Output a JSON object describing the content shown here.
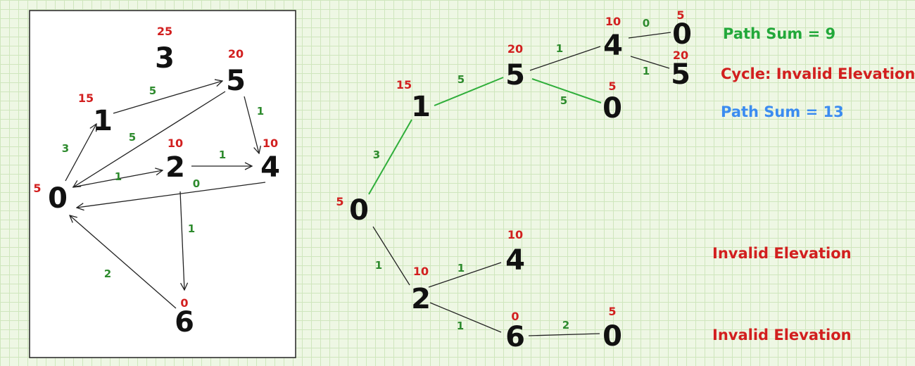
{
  "graph": {
    "nodes": [
      {
        "id": "0",
        "elevation": "5"
      },
      {
        "id": "1",
        "elevation": "15"
      },
      {
        "id": "2",
        "elevation": "10"
      },
      {
        "id": "3",
        "elevation": "25"
      },
      {
        "id": "4",
        "elevation": "10"
      },
      {
        "id": "5",
        "elevation": "20"
      },
      {
        "id": "6",
        "elevation": "0"
      }
    ],
    "edges": [
      {
        "from": "0",
        "to": "1",
        "weight": "3"
      },
      {
        "from": "1",
        "to": "5",
        "weight": "5"
      },
      {
        "from": "5",
        "to": "0",
        "weight": "5"
      },
      {
        "from": "5",
        "to": "4",
        "weight": "1"
      },
      {
        "from": "0",
        "to": "2",
        "weight": "1"
      },
      {
        "from": "2",
        "to": "4",
        "weight": "1"
      },
      {
        "from": "4",
        "to": "0",
        "weight": "0"
      },
      {
        "from": "2",
        "to": "6",
        "weight": "1"
      },
      {
        "from": "6",
        "to": "0",
        "weight": "2"
      }
    ]
  },
  "tree": {
    "nodes": [
      {
        "id": "t0",
        "label": "0",
        "elevation": "5"
      },
      {
        "id": "t1",
        "label": "1",
        "elevation": "15"
      },
      {
        "id": "t5",
        "label": "5",
        "elevation": "20"
      },
      {
        "id": "t4a",
        "label": "4",
        "elevation": "10"
      },
      {
        "id": "t0a",
        "label": "0",
        "elevation": "5"
      },
      {
        "id": "t5b",
        "label": "5",
        "elevation": "20"
      },
      {
        "id": "t0b",
        "label": "0",
        "elevation": "5"
      },
      {
        "id": "t2",
        "label": "2",
        "elevation": "10"
      },
      {
        "id": "t4c",
        "label": "4",
        "elevation": "10"
      },
      {
        "id": "t6",
        "label": "6",
        "elevation": "0"
      },
      {
        "id": "t0c",
        "label": "0",
        "elevation": "5"
      }
    ],
    "edges": [
      {
        "from": "t0",
        "to": "t1",
        "weight": "3",
        "highlight": true
      },
      {
        "from": "t1",
        "to": "t5",
        "weight": "5",
        "highlight": true
      },
      {
        "from": "t5",
        "to": "t4a",
        "weight": "1",
        "highlight": false
      },
      {
        "from": "t4a",
        "to": "t0a",
        "weight": "0",
        "highlight": false
      },
      {
        "from": "t4a",
        "to": "t5b",
        "weight": "1",
        "highlight": false
      },
      {
        "from": "t5",
        "to": "t0b",
        "weight": "5",
        "highlight": true
      },
      {
        "from": "t0",
        "to": "t2",
        "weight": "1",
        "highlight": false
      },
      {
        "from": "t2",
        "to": "t4c",
        "weight": "1",
        "highlight": false
      },
      {
        "from": "t2",
        "to": "t6",
        "weight": "1",
        "highlight": false
      },
      {
        "from": "t6",
        "to": "t0c",
        "weight": "2",
        "highlight": false
      }
    ]
  },
  "notes": [
    {
      "text": "Path Sum = 9",
      "color": "#22a83a"
    },
    {
      "text": "Cycle: Invalid Elevation",
      "color": "#d21f1f"
    },
    {
      "text": "Path Sum = 13",
      "color": "#3b8cf0"
    },
    {
      "text": "Invalid Elevation",
      "color": "#d21f1f"
    },
    {
      "text": "Invalid Elevation",
      "color": "#d21f1f"
    }
  ]
}
